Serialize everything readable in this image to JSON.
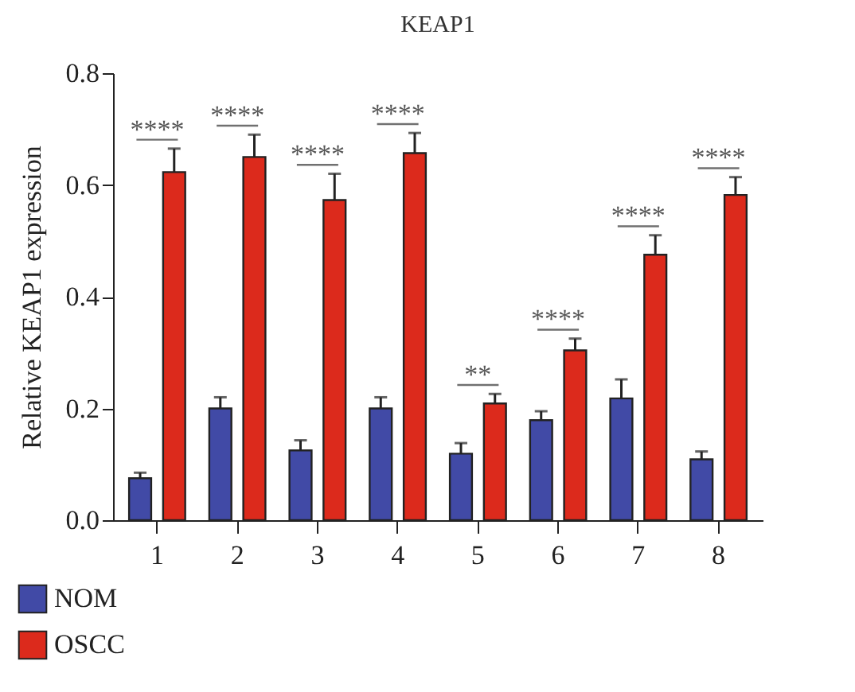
{
  "chart_data": {
    "type": "bar",
    "title": "KEAP1",
    "ylabel": "Relative KEAP1 expression",
    "categories": [
      "1",
      "2",
      "3",
      "4",
      "5",
      "6",
      "7",
      "8"
    ],
    "series": [
      {
        "name": "NOM",
        "color": "#414aa6",
        "values": [
          0.075,
          0.2,
          0.125,
          0.2,
          0.119,
          0.179,
          0.218,
          0.109
        ],
        "errors": [
          [
            0.075,
            0.085
          ],
          [
            0.2,
            0.22
          ],
          [
            0.125,
            0.143
          ],
          [
            0.2,
            0.22
          ],
          [
            0.119,
            0.138
          ],
          [
            0.179,
            0.195
          ],
          [
            0.218,
            0.252
          ],
          [
            0.109,
            0.123
          ]
        ]
      },
      {
        "name": "OSCC",
        "color": "#dc2a1c",
        "values": [
          0.623,
          0.65,
          0.573,
          0.657,
          0.209,
          0.304,
          0.475,
          0.582
        ],
        "errors": [
          [
            0.623,
            0.665
          ],
          [
            0.65,
            0.69
          ],
          [
            0.573,
            0.62
          ],
          [
            0.657,
            0.693
          ],
          [
            0.209,
            0.226
          ],
          [
            0.304,
            0.325
          ],
          [
            0.475,
            0.51
          ],
          [
            0.582,
            0.614
          ]
        ]
      }
    ],
    "annotations": [
      "****",
      "****",
      "****",
      "****",
      "**",
      "****",
      "****",
      "****"
    ],
    "ylim": [
      0,
      0.8
    ],
    "yticks": [
      {
        "value": 0,
        "label": "0.0"
      },
      0.2,
      0.4,
      0.6,
      0.8
    ],
    "legend": "bottom left",
    "grid": false
  }
}
